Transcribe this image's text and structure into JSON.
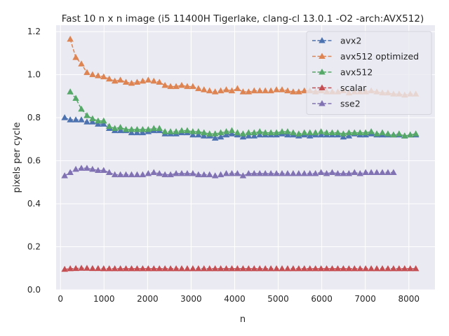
{
  "chart_data": {
    "type": "line",
    "title": "Fast 10 n x n image (i5 11400H Tigerlake, clang-cl 13.0.1 -O2 -arch:AVX512)",
    "xlabel": "n",
    "ylabel": "pixels per cycle",
    "xlim": [
      -100,
      8600
    ],
    "ylim": [
      0,
      1.23
    ],
    "xticks": [
      0,
      1000,
      2000,
      3000,
      4000,
      5000,
      6000,
      7000,
      8000
    ],
    "yticks": [
      0.0,
      0.2,
      0.4,
      0.6,
      0.8,
      1.0,
      1.2
    ],
    "grid": true,
    "legend_position": "top-right",
    "x": [
      96,
      224,
      352,
      480,
      608,
      736,
      864,
      992,
      1120,
      1248,
      1376,
      1504,
      1632,
      1760,
      1888,
      2016,
      2144,
      2272,
      2400,
      2528,
      2656,
      2784,
      2912,
      3040,
      3168,
      3296,
      3424,
      3552,
      3680,
      3808,
      3936,
      4064,
      4192,
      4320,
      4448,
      4576,
      4704,
      4832,
      4960,
      5088,
      5216,
      5344,
      5472,
      5600,
      5728,
      5856,
      5984,
      6112,
      6240,
      6368,
      6496,
      6624,
      6752,
      6880,
      7008,
      7136,
      7264,
      7392,
      7520,
      7648,
      7776,
      7904,
      8032,
      8160
    ],
    "series": [
      {
        "name": "avx2",
        "color": "#4c72b0",
        "values": [
          0.8,
          0.79,
          0.79,
          0.79,
          0.78,
          0.78,
          0.77,
          0.77,
          0.75,
          0.74,
          0.74,
          0.74,
          0.73,
          0.73,
          0.73,
          0.735,
          0.74,
          0.74,
          0.725,
          0.725,
          0.725,
          0.73,
          0.73,
          0.72,
          0.72,
          0.715,
          0.715,
          0.705,
          0.71,
          0.72,
          0.725,
          0.72,
          0.71,
          0.715,
          0.715,
          0.72,
          0.72,
          0.72,
          0.72,
          0.725,
          0.72,
          0.72,
          0.715,
          0.72,
          0.715,
          0.72,
          0.72,
          0.72,
          0.72,
          0.72,
          0.71,
          0.715,
          0.725,
          0.72,
          0.72,
          0.725,
          0.72,
          0.72,
          0.72,
          0.72,
          0.72,
          0.715,
          0.72,
          0.72
        ]
      },
      {
        "name": "avx512 optimized",
        "color": "#dd8452",
        "values": [
          null,
          1.165,
          1.08,
          1.05,
          1.01,
          1.0,
          0.995,
          0.99,
          0.98,
          0.97,
          0.975,
          0.965,
          0.96,
          0.965,
          0.97,
          0.975,
          0.97,
          0.965,
          0.95,
          0.945,
          0.945,
          0.95,
          0.945,
          0.945,
          0.935,
          0.93,
          0.925,
          0.92,
          0.925,
          0.93,
          0.925,
          0.935,
          0.92,
          0.92,
          0.925,
          0.925,
          0.925,
          0.925,
          0.93,
          0.93,
          0.925,
          0.92,
          0.92,
          0.925,
          0.925,
          0.92,
          0.925,
          0.92,
          0.92,
          0.92,
          0.925,
          0.915,
          0.92,
          0.92,
          0.92,
          0.925,
          0.92,
          0.915,
          0.915,
          0.91,
          0.91,
          0.905,
          0.91,
          0.91
        ]
      },
      {
        "name": "avx512",
        "color": "#55a868",
        "values": [
          null,
          0.92,
          0.89,
          0.84,
          0.81,
          0.795,
          0.785,
          0.785,
          0.76,
          0.75,
          0.755,
          0.745,
          0.745,
          0.745,
          0.745,
          0.745,
          0.75,
          0.75,
          0.735,
          0.735,
          0.735,
          0.74,
          0.74,
          0.735,
          0.735,
          0.73,
          0.725,
          0.725,
          0.73,
          0.735,
          0.74,
          0.73,
          0.725,
          0.73,
          0.73,
          0.735,
          0.73,
          0.73,
          0.73,
          0.735,
          0.735,
          0.73,
          0.725,
          0.73,
          0.73,
          0.73,
          0.735,
          0.73,
          0.73,
          0.73,
          0.725,
          0.73,
          0.73,
          0.73,
          0.73,
          0.735,
          0.725,
          0.73,
          0.725,
          0.72,
          0.725,
          0.715,
          0.72,
          0.725
        ]
      },
      {
        "name": "scalar",
        "color": "#c44e52",
        "values": [
          0.095,
          0.098,
          0.099,
          0.1,
          0.1,
          0.099,
          0.099,
          0.098,
          0.098,
          0.098,
          0.098,
          0.098,
          0.098,
          0.098,
          0.098,
          0.098,
          0.098,
          0.098,
          0.098,
          0.098,
          0.098,
          0.098,
          0.098,
          0.098,
          0.098,
          0.098,
          0.098,
          0.098,
          0.098,
          0.098,
          0.098,
          0.098,
          0.098,
          0.098,
          0.098,
          0.098,
          0.098,
          0.098,
          0.098,
          0.098,
          0.098,
          0.098,
          0.098,
          0.098,
          0.098,
          0.098,
          0.098,
          0.098,
          0.098,
          0.098,
          0.098,
          0.098,
          0.098,
          0.098,
          0.098,
          0.098,
          0.098,
          0.098,
          0.098,
          0.098,
          0.098,
          0.098,
          0.098,
          0.098
        ]
      },
      {
        "name": "sse2",
        "color": "#8172b3",
        "values": [
          0.53,
          0.545,
          0.56,
          0.565,
          0.565,
          0.56,
          0.555,
          0.555,
          0.545,
          0.535,
          0.535,
          0.535,
          0.535,
          0.535,
          0.535,
          0.54,
          0.545,
          0.54,
          0.535,
          0.535,
          0.54,
          0.54,
          0.54,
          0.54,
          0.535,
          0.535,
          0.535,
          0.53,
          0.535,
          0.54,
          0.54,
          0.54,
          0.53,
          0.54,
          0.54,
          0.54,
          0.54,
          0.54,
          0.54,
          0.54,
          0.54,
          0.54,
          0.54,
          0.54,
          0.54,
          0.54,
          0.545,
          0.54,
          0.545,
          0.54,
          0.54,
          0.54,
          0.545,
          0.54,
          0.545,
          0.545,
          0.545,
          0.545,
          0.545,
          0.545,
          null,
          null,
          null,
          null
        ]
      }
    ]
  }
}
